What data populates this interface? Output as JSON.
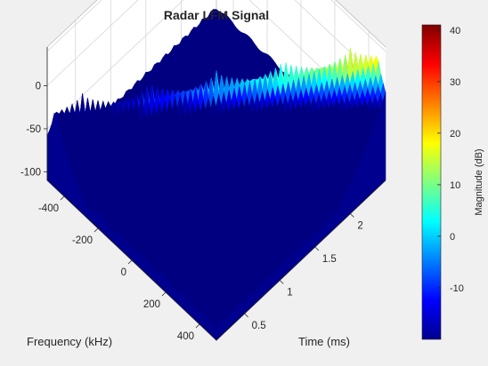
{
  "chart_data": {
    "type": "surface",
    "title": "Radar LFM Signal",
    "xlabel": "Time (ms)",
    "ylabel": "Frequency (kHz)",
    "zlabel": "",
    "colorbar_label": "Magnitude (dB)",
    "x_ticks": [
      "0.5",
      "1",
      "1.5",
      "2"
    ],
    "y_ticks": [
      "-400",
      "-200",
      "0",
      "200",
      "400"
    ],
    "z_ticks": [
      "-100",
      "-50",
      "0"
    ],
    "colorbar_ticks": [
      "-10",
      "0",
      "10",
      "20",
      "30",
      "40"
    ],
    "xlim": [
      0.1,
      2.5
    ],
    "ylim": [
      -500,
      500
    ],
    "zlim": [
      -110,
      45
    ],
    "clim": [
      -20,
      41
    ],
    "colormap": "jet",
    "chirp": {
      "start_time_ms": 0.1,
      "end_time_ms": 2.5,
      "start_freq_khz": -450,
      "end_freq_khz": 450,
      "peak_db_start": -5,
      "peak_db_end": 40
    },
    "noise_floor_db": -95,
    "grid": true,
    "background_color": "#f0f0f0",
    "floor_color": "#00008f"
  }
}
